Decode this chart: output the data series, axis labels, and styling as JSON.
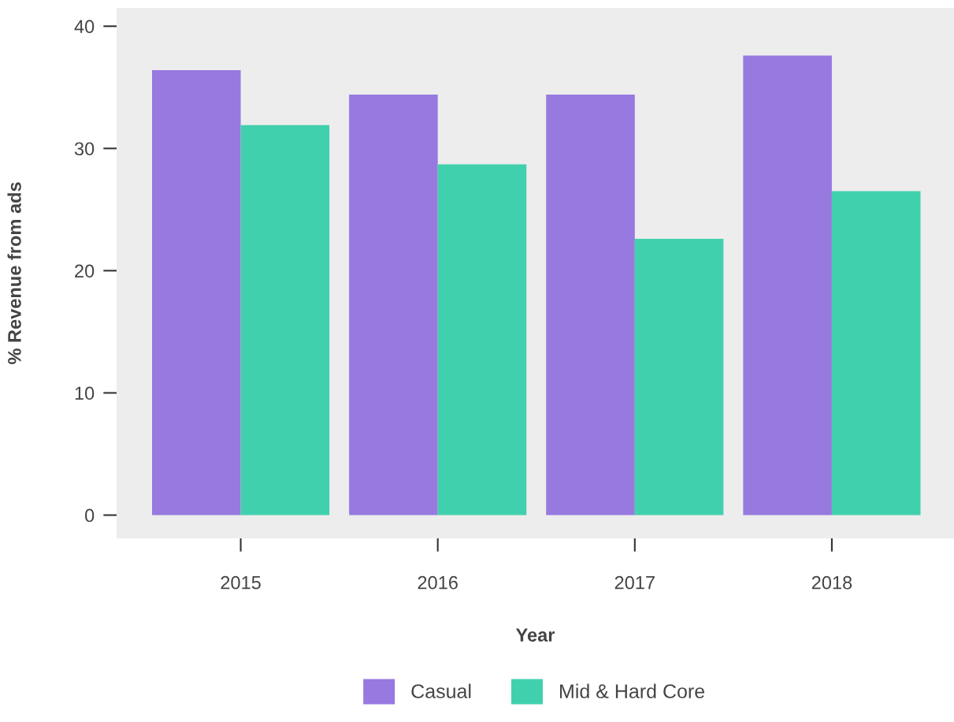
{
  "chart_data": {
    "type": "bar",
    "xlabel": "Year",
    "ylabel": "% Revenue from ads",
    "categories": [
      "2015",
      "2016",
      "2017",
      "2018"
    ],
    "series": [
      {
        "name": "Casual",
        "color": "#9779e0",
        "values": [
          36.4,
          34.4,
          34.4,
          37.6
        ]
      },
      {
        "name": "Mid & Hard Core",
        "color": "#41d0ad",
        "values": [
          31.9,
          28.7,
          22.6,
          26.5
        ]
      }
    ],
    "ylim": [
      -1.9,
      41.5
    ],
    "yticks": [
      0,
      10,
      20,
      30,
      40
    ],
    "grid": false,
    "legend": "bottom"
  }
}
